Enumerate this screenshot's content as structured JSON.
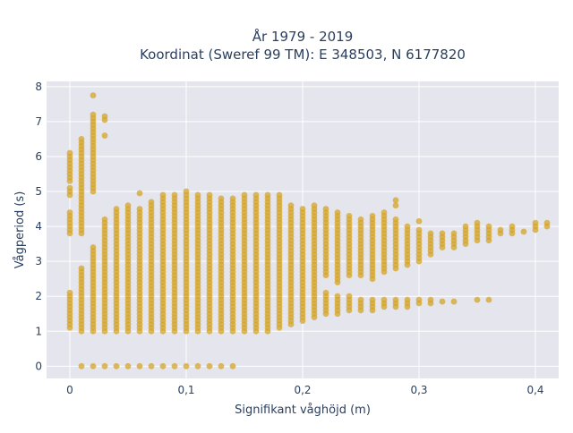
{
  "chart_data": {
    "type": "scatter",
    "title_line1": "År 1979 - 2019",
    "title_line2": "Koordinat (Sweref 99 TM): E 348503, N 6177820",
    "xlabel": "Signifikant våghöjd (m)",
    "ylabel": "Vågperiod (s)",
    "xlim": [
      -0.02,
      0.42
    ],
    "ylim": [
      -0.35,
      8.15
    ],
    "xticks": [
      0,
      0.1,
      0.2,
      0.3,
      0.4
    ],
    "xtick_labels": [
      "0",
      "0,1",
      "0,2",
      "0,3",
      "0,4"
    ],
    "yticks": [
      0,
      1,
      2,
      3,
      4,
      5,
      6,
      7,
      8
    ],
    "ytick_labels": [
      "0",
      "1",
      "2",
      "3",
      "4",
      "5",
      "6",
      "7",
      "8"
    ],
    "grid": true,
    "legend": "none",
    "colors": {
      "marker": "#d4a428",
      "plot_bg": "#e5e5ee",
      "grid": "#ffffff",
      "text": "#2a3f5f"
    },
    "marker_opacity": 0.75,
    "step_y": 0.1,
    "columns": [
      {
        "x": 0.0,
        "ranges": [
          [
            1.1,
            2.1
          ],
          [
            3.8,
            4.4
          ],
          [
            4.9,
            5.1
          ],
          [
            5.3,
            6.1
          ]
        ]
      },
      {
        "x": 0.01,
        "ranges": [
          [
            1.0,
            2.8
          ],
          [
            3.8,
            6.5
          ]
        ]
      },
      {
        "x": 0.02,
        "ranges": [
          [
            1.0,
            3.4
          ],
          [
            5.0,
            7.2
          ]
        ],
        "extra_y": [
          7.75
        ]
      },
      {
        "x": 0.03,
        "ranges": [
          [
            1.0,
            4.2
          ]
        ],
        "extra_y": [
          6.6,
          7.05,
          7.15
        ]
      },
      {
        "x": 0.04,
        "ranges": [
          [
            1.0,
            4.5
          ]
        ]
      },
      {
        "x": 0.05,
        "ranges": [
          [
            1.0,
            4.5
          ]
        ],
        "extra_y": [
          4.6
        ]
      },
      {
        "x": 0.06,
        "ranges": [
          [
            1.0,
            4.5
          ]
        ],
        "extra_y": [
          4.95
        ]
      },
      {
        "x": 0.07,
        "ranges": [
          [
            1.0,
            4.7
          ]
        ]
      },
      {
        "x": 0.08,
        "ranges": [
          [
            1.0,
            4.9
          ]
        ]
      },
      {
        "x": 0.09,
        "ranges": [
          [
            1.0,
            4.9
          ]
        ]
      },
      {
        "x": 0.1,
        "ranges": [
          [
            1.0,
            5.0
          ]
        ]
      },
      {
        "x": 0.11,
        "ranges": [
          [
            1.0,
            4.9
          ]
        ]
      },
      {
        "x": 0.12,
        "ranges": [
          [
            1.0,
            4.9
          ]
        ]
      },
      {
        "x": 0.13,
        "ranges": [
          [
            1.0,
            4.8
          ]
        ]
      },
      {
        "x": 0.14,
        "ranges": [
          [
            1.0,
            4.8
          ]
        ]
      },
      {
        "x": 0.15,
        "ranges": [
          [
            1.0,
            4.9
          ]
        ]
      },
      {
        "x": 0.16,
        "ranges": [
          [
            1.0,
            4.9
          ]
        ]
      },
      {
        "x": 0.17,
        "ranges": [
          [
            1.0,
            4.9
          ]
        ]
      },
      {
        "x": 0.18,
        "ranges": [
          [
            1.1,
            4.9
          ]
        ]
      },
      {
        "x": 0.19,
        "ranges": [
          [
            1.2,
            4.6
          ]
        ]
      },
      {
        "x": 0.2,
        "ranges": [
          [
            1.3,
            4.5
          ]
        ]
      },
      {
        "x": 0.21,
        "ranges": [
          [
            1.4,
            4.6
          ]
        ]
      },
      {
        "x": 0.22,
        "ranges": [
          [
            1.5,
            2.1
          ],
          [
            2.6,
            4.5
          ]
        ]
      },
      {
        "x": 0.23,
        "ranges": [
          [
            1.5,
            2.0
          ],
          [
            2.4,
            4.4
          ]
        ]
      },
      {
        "x": 0.24,
        "ranges": [
          [
            1.6,
            2.0
          ],
          [
            2.6,
            4.3
          ]
        ]
      },
      {
        "x": 0.25,
        "ranges": [
          [
            1.6,
            1.9
          ],
          [
            2.6,
            4.2
          ]
        ]
      },
      {
        "x": 0.26,
        "ranges": [
          [
            1.6,
            1.9
          ],
          [
            2.5,
            4.3
          ]
        ]
      },
      {
        "x": 0.27,
        "ranges": [
          [
            1.7,
            1.9
          ],
          [
            2.7,
            4.4
          ]
        ]
      },
      {
        "x": 0.28,
        "ranges": [
          [
            1.7,
            1.9
          ],
          [
            2.8,
            4.2
          ]
        ],
        "extra_y": [
          4.6,
          4.75
        ]
      },
      {
        "x": 0.29,
        "ranges": [
          [
            1.7,
            1.9
          ],
          [
            2.9,
            4.0
          ]
        ]
      },
      {
        "x": 0.3,
        "ranges": [
          [
            1.8,
            1.9
          ],
          [
            3.0,
            3.9
          ]
        ],
        "extra_y": [
          4.15
        ]
      },
      {
        "x": 0.31,
        "ranges": [
          [
            1.8,
            1.9
          ],
          [
            3.2,
            3.8
          ]
        ]
      },
      {
        "x": 0.32,
        "ranges": [
          [
            3.4,
            3.8
          ]
        ],
        "extra_y": [
          1.85
        ]
      },
      {
        "x": 0.33,
        "ranges": [
          [
            3.4,
            3.8
          ]
        ],
        "extra_y": [
          1.85
        ]
      },
      {
        "x": 0.34,
        "ranges": [
          [
            3.5,
            4.0
          ]
        ]
      },
      {
        "x": 0.35,
        "ranges": [
          [
            3.6,
            4.1
          ]
        ],
        "extra_y": [
          1.9
        ]
      },
      {
        "x": 0.36,
        "ranges": [
          [
            3.6,
            4.0
          ]
        ],
        "extra_y": [
          1.9
        ]
      },
      {
        "x": 0.37,
        "ranges": [
          [
            3.8,
            3.9
          ]
        ]
      },
      {
        "x": 0.38,
        "ranges": [
          [
            3.8,
            4.0
          ]
        ]
      },
      {
        "x": 0.39,
        "ranges": [
          [
            3.85,
            3.85
          ]
        ]
      },
      {
        "x": 0.4,
        "ranges": [
          [
            3.9,
            4.1
          ]
        ]
      },
      {
        "x": 0.41,
        "ranges": [
          [
            4.0,
            4.1
          ]
        ]
      }
    ],
    "zero_period_points": [
      {
        "x": 0.01,
        "y": 0
      },
      {
        "x": 0.02,
        "y": 0
      },
      {
        "x": 0.03,
        "y": 0
      },
      {
        "x": 0.04,
        "y": 0
      },
      {
        "x": 0.05,
        "y": 0
      },
      {
        "x": 0.06,
        "y": 0
      },
      {
        "x": 0.07,
        "y": 0
      },
      {
        "x": 0.08,
        "y": 0
      },
      {
        "x": 0.09,
        "y": 0
      },
      {
        "x": 0.1,
        "y": 0
      },
      {
        "x": 0.11,
        "y": 0
      },
      {
        "x": 0.12,
        "y": 0
      },
      {
        "x": 0.13,
        "y": 0
      },
      {
        "x": 0.14,
        "y": 0
      }
    ]
  }
}
